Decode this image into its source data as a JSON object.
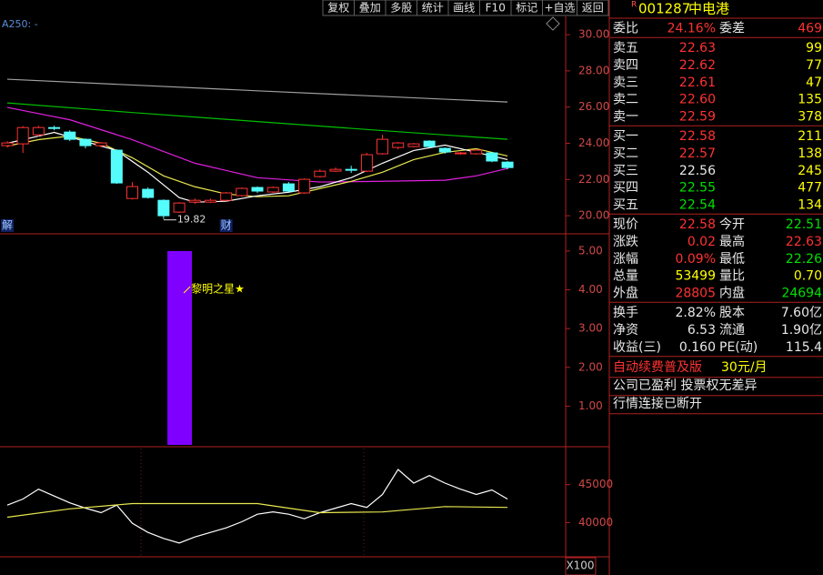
{
  "toolbar": [
    "复权",
    "叠加",
    "多股",
    "统计",
    "画线",
    "F10",
    "标记",
    "+自选",
    "返回"
  ],
  "chart_data": [
    {
      "type": "candlestick",
      "label": "A250: -",
      "ylim": [
        19.05,
        31.01
      ],
      "yticks": [
        {
          "value": 20,
          "label": "20.00"
        },
        {
          "value": 22,
          "label": "22.00"
        },
        {
          "value": 24,
          "label": "24.00"
        },
        {
          "value": 26,
          "label": "26.00"
        },
        {
          "value": 28,
          "label": "28.00"
        },
        {
          "value": 30,
          "label": "30.00"
        }
      ],
      "open": [
        23.87,
        23.97,
        24.47,
        24.87,
        24.62,
        24.22,
        23.87,
        23.62,
        20.95,
        21.46,
        20.85,
        20.2,
        20.75,
        20.75,
        20.85,
        21.11,
        21.56,
        21.31,
        21.76,
        21.26,
        22.16,
        22.46,
        22.56,
        22.46,
        23.42,
        23.77,
        23.82,
        24.12,
        23.72,
        23.42,
        23.42,
        23.47,
        22.96
      ],
      "high": [
        24.12,
        24.95,
        24.97,
        24.97,
        24.72,
        24.27,
        24.07,
        23.67,
        21.86,
        21.56,
        20.9,
        20.75,
        20.95,
        20.95,
        21.31,
        21.56,
        21.61,
        21.61,
        21.86,
        22.06,
        22.56,
        22.66,
        22.76,
        23.47,
        24.47,
        24.07,
        24.02,
        24.17,
        23.77,
        23.52,
        23.67,
        23.52,
        23.02
      ],
      "low": [
        23.77,
        23.47,
        24.37,
        24.72,
        24.12,
        23.72,
        23.77,
        21.76,
        20.9,
        20.95,
        19.82,
        20.15,
        20.65,
        20.7,
        20.8,
        21.06,
        21.26,
        21.26,
        21.31,
        21.21,
        22.11,
        22.41,
        22.36,
        22.41,
        23.37,
        23.67,
        23.77,
        23.77,
        23.42,
        23.37,
        23.37,
        22.96,
        22.56
      ],
      "close": [
        24.02,
        24.87,
        24.87,
        24.82,
        24.22,
        23.87,
        24.02,
        21.81,
        21.61,
        21.01,
        20.0,
        20.7,
        20.85,
        20.85,
        21.26,
        21.51,
        21.36,
        21.56,
        21.36,
        22.01,
        22.46,
        22.56,
        22.56,
        23.37,
        24.22,
        24.02,
        23.97,
        23.82,
        23.52,
        23.47,
        23.62,
        23.02,
        22.66
      ],
      "up_color": "#ff3232",
      "down_color": "#54fcfc",
      "events": [
        "解",
        null,
        null,
        null,
        null,
        null,
        null,
        null,
        null,
        null,
        null,
        null,
        null,
        null,
        "财",
        null,
        null,
        null,
        null,
        null,
        null,
        null,
        null,
        null,
        null,
        null,
        null,
        null,
        null,
        null,
        null,
        null,
        null
      ],
      "annotation": {
        "index": 10,
        "value": 19.82
      },
      "series": [
        {
          "color": "#a0a0a0",
          "x": [
            0,
            16,
            32
          ],
          "values": [
            27.54,
            26.9,
            26.28
          ]
        },
        {
          "color": "#00c000",
          "x": [
            0,
            8,
            16,
            24,
            32
          ],
          "values": [
            26.23,
            25.7,
            25.2,
            24.7,
            24.22
          ]
        },
        {
          "color": "#e020e0",
          "x": [
            0,
            4,
            8,
            12,
            16,
            20,
            24,
            28,
            30,
            32
          ],
          "values": [
            25.98,
            25.3,
            24.2,
            22.9,
            22.1,
            21.86,
            21.9,
            21.96,
            22.2,
            22.61
          ]
        },
        {
          "color": "#e8e850",
          "x": [
            0,
            2,
            4,
            6,
            8,
            10,
            12,
            14,
            16,
            18,
            20,
            22,
            24,
            26,
            28,
            30,
            32
          ],
          "values": [
            23.85,
            24.2,
            24.4,
            24.0,
            23.2,
            22.2,
            21.6,
            21.2,
            21.05,
            21.1,
            21.5,
            21.9,
            22.4,
            23.1,
            23.5,
            23.7,
            23.3
          ]
        },
        {
          "color": "#ffffff",
          "x": [
            0,
            2,
            3,
            5,
            7,
            9,
            11,
            12,
            14,
            16,
            18,
            20,
            22,
            24,
            26,
            28,
            30,
            32
          ],
          "values": [
            24.0,
            24.4,
            24.6,
            24.1,
            23.6,
            22.4,
            21.0,
            20.75,
            20.8,
            21.1,
            21.3,
            21.6,
            22.1,
            22.9,
            23.6,
            23.9,
            23.5,
            23.1
          ]
        }
      ]
    },
    {
      "type": "bar",
      "ylim": [
        0,
        5.42
      ],
      "yticks": [
        {
          "value": 1,
          "label": "1.00"
        },
        {
          "value": 2,
          "label": "2.00"
        },
        {
          "value": 3,
          "label": "3.00"
        },
        {
          "value": 4,
          "label": "4.00"
        },
        {
          "value": 5,
          "label": "5.00"
        }
      ],
      "values": [
        null,
        null,
        null,
        null,
        null,
        null,
        null,
        null,
        null,
        null,
        null,
        5,
        null,
        null,
        null,
        null,
        null,
        null,
        null,
        null,
        null,
        null,
        null,
        null,
        null,
        null,
        null,
        null,
        null,
        null,
        null,
        null,
        null
      ],
      "color": "#8000ff",
      "annotation": "黎明之星★"
    },
    {
      "type": "line",
      "ylim": [
        35480,
        49760
      ],
      "yticks": [
        40000,
        45000
      ],
      "unit": "X100",
      "series": [
        {
          "color": "#ffffff",
          "values": [
            42300,
            43100,
            44400,
            43500,
            42600,
            41900,
            41300,
            42300,
            39900,
            38700,
            37900,
            37300,
            38100,
            38700,
            39300,
            40100,
            41100,
            41400,
            41100,
            40500,
            41300,
            41900,
            42500,
            42000,
            43700,
            47000,
            45200,
            46200,
            45200,
            44400,
            43700,
            44300,
            43100
          ]
        },
        {
          "color": "#e8e850",
          "x": [
            0,
            4,
            8,
            16,
            20,
            24,
            28,
            32
          ],
          "values": [
            40700,
            41800,
            42500,
            42500,
            41300,
            41400,
            42100,
            42000
          ]
        }
      ]
    }
  ],
  "quote": {
    "badge": "R",
    "code": "001287",
    "name": "中电港",
    "sections": [
      [
        [
          {
            "text": "委比"
          },
          {
            "text": "24.16%",
            "color": "#ff3232"
          },
          {
            "text": "委差"
          },
          {
            "text": "469",
            "color": "#ff3232"
          }
        ]
      ],
      [
        [
          {
            "text": "卖五"
          },
          {
            "text": "22.63",
            "color": "#ff3232"
          },
          {
            "text": "99",
            "color": "#ffff00"
          }
        ],
        [
          {
            "text": "卖四"
          },
          {
            "text": "22.62",
            "color": "#ff3232"
          },
          {
            "text": "77",
            "color": "#ffff00"
          }
        ],
        [
          {
            "text": "卖三"
          },
          {
            "text": "22.61",
            "color": "#ff3232"
          },
          {
            "text": "47",
            "color": "#ffff00"
          }
        ],
        [
          {
            "text": "卖二"
          },
          {
            "text": "22.60",
            "color": "#ff3232"
          },
          {
            "text": "135",
            "color": "#ffff00"
          }
        ],
        [
          {
            "text": "卖一"
          },
          {
            "text": "22.59",
            "color": "#ff3232"
          },
          {
            "text": "378",
            "color": "#ffff00"
          }
        ]
      ],
      [
        [
          {
            "text": "买一"
          },
          {
            "text": "22.58",
            "color": "#ff3232"
          },
          {
            "text": "211",
            "color": "#ffff00"
          }
        ],
        [
          {
            "text": "买二"
          },
          {
            "text": "22.57",
            "color": "#ff3232"
          },
          {
            "text": "138",
            "color": "#ffff00"
          }
        ],
        [
          {
            "text": "买三"
          },
          {
            "text": "22.56"
          },
          {
            "text": "245",
            "color": "#ffff00"
          }
        ],
        [
          {
            "text": "买四"
          },
          {
            "text": "22.55",
            "color": "#00e000"
          },
          {
            "text": "477",
            "color": "#ffff00"
          }
        ],
        [
          {
            "text": "买五"
          },
          {
            "text": "22.54",
            "color": "#00e000"
          },
          {
            "text": "134",
            "color": "#ffff00"
          }
        ]
      ],
      [
        [
          {
            "text": "现价"
          },
          {
            "text": "22.58",
            "color": "#ff3232"
          },
          {
            "text": "今开"
          },
          {
            "text": "22.51",
            "color": "#00e000"
          }
        ],
        [
          {
            "text": "涨跌"
          },
          {
            "text": "0.02",
            "color": "#ff3232"
          },
          {
            "text": "最高"
          },
          {
            "text": "22.63",
            "color": "#ff3232"
          }
        ],
        [
          {
            "text": "涨幅"
          },
          {
            "text": "0.09%",
            "color": "#ff3232"
          },
          {
            "text": "最低"
          },
          {
            "text": "22.26",
            "color": "#00e000"
          }
        ],
        [
          {
            "text": "总量"
          },
          {
            "text": "53499",
            "color": "#ffff00"
          },
          {
            "text": "量比"
          },
          {
            "text": "0.70",
            "color": "#ffff00"
          }
        ],
        [
          {
            "text": "外盘"
          },
          {
            "text": "28805",
            "color": "#ff3232"
          },
          {
            "text": "内盘"
          },
          {
            "text": "24694",
            "color": "#00e000"
          }
        ]
      ],
      [
        [
          {
            "text": "换手"
          },
          {
            "text": "2.82%"
          },
          {
            "text": "股本"
          },
          {
            "text": "7.60亿"
          }
        ],
        [
          {
            "text": "净资"
          },
          {
            "text": "6.53"
          },
          {
            "text": "流通"
          },
          {
            "text": "1.90亿"
          }
        ],
        [
          {
            "text": "收益(三)"
          },
          {
            "text": "0.160"
          },
          {
            "text": "PE(动)"
          },
          {
            "text": "115.4"
          }
        ]
      ]
    ],
    "notices": [
      [
        {
          "text": "自动续费普及版",
          "color": "#ff3232"
        },
        {
          "text": "30元/月",
          "color": "#ffff00"
        }
      ],
      [
        {
          "text": "公司已盈利 投票权无差异"
        }
      ],
      [
        {
          "text": "行情连接已断开"
        }
      ]
    ]
  }
}
